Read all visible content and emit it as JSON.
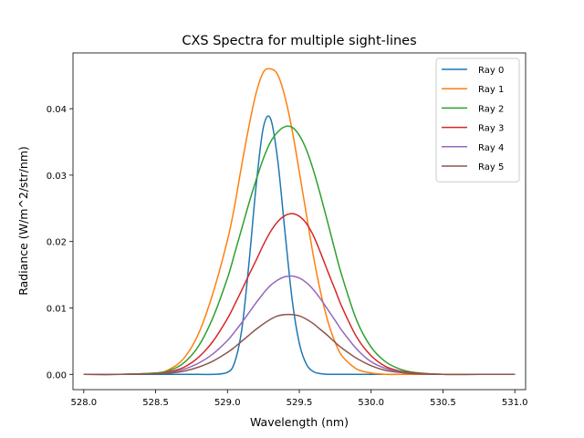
{
  "chart_data": {
    "type": "line",
    "title": "CXS Spectra for multiple sight-lines",
    "xlabel": "Wavelength (nm)",
    "ylabel": "Radiance (W/m^2/str/nm)",
    "xlim": [
      527.925,
      531.075
    ],
    "ylim": [
      -0.0023,
      0.0484
    ],
    "xticks": [
      528.0,
      528.5,
      529.0,
      529.5,
      530.0,
      530.5,
      531.0
    ],
    "xtick_labels": [
      "528.0",
      "528.5",
      "529.0",
      "529.5",
      "530.0",
      "530.5",
      "531.0"
    ],
    "yticks": [
      0.0,
      0.01,
      0.02,
      0.03,
      0.04
    ],
    "ytick_labels": [
      "0.00",
      "0.01",
      "0.02",
      "0.03",
      "0.04"
    ],
    "grid": false,
    "legend_position": "top-right",
    "x": [
      528.0,
      528.25,
      528.5,
      528.6,
      528.7,
      528.8,
      528.9,
      529.0,
      529.05,
      529.1,
      529.15,
      529.2,
      529.25,
      529.3,
      529.35,
      529.4,
      529.45,
      529.5,
      529.55,
      529.6,
      529.65,
      529.7,
      529.75,
      529.8,
      529.9,
      530.0,
      530.1,
      530.2,
      530.3,
      530.5,
      530.75,
      531.0
    ],
    "series": [
      {
        "name": "Ray 0",
        "color": "#1f77b4",
        "values": [
          0,
          0,
          0,
          0,
          0,
          0,
          0,
          0.0003,
          0.0018,
          0.0068,
          0.0168,
          0.0285,
          0.0372,
          0.0385,
          0.0322,
          0.0215,
          0.0113,
          0.0047,
          0.0015,
          0.0004,
          0.0001,
          0,
          0,
          0,
          0,
          0,
          0,
          0,
          0,
          0,
          0,
          0
        ]
      },
      {
        "name": "Ray 1",
        "color": "#ff7f0e",
        "values": [
          0,
          0,
          0.0002,
          0.0008,
          0.0025,
          0.0062,
          0.0123,
          0.0202,
          0.0254,
          0.0316,
          0.0374,
          0.0424,
          0.0455,
          0.046,
          0.0451,
          0.0418,
          0.0368,
          0.0305,
          0.024,
          0.0176,
          0.0122,
          0.0079,
          0.0048,
          0.0027,
          0.0008,
          0.0002,
          0,
          0,
          0,
          0,
          0,
          0
        ]
      },
      {
        "name": "Ray 2",
        "color": "#2ca02c",
        "values": [
          0,
          0,
          0.0002,
          0.0006,
          0.0018,
          0.0043,
          0.0086,
          0.0145,
          0.0182,
          0.022,
          0.0258,
          0.0293,
          0.0325,
          0.035,
          0.0365,
          0.0373,
          0.0372,
          0.036,
          0.0338,
          0.0306,
          0.0268,
          0.0227,
          0.0185,
          0.0146,
          0.0081,
          0.0041,
          0.0019,
          0.0008,
          0.0003,
          0,
          0,
          0
        ]
      },
      {
        "name": "Ray 3",
        "color": "#d62728",
        "values": [
          0,
          0,
          0.0001,
          0.0004,
          0.0011,
          0.0026,
          0.005,
          0.0084,
          0.0105,
          0.0127,
          0.015,
          0.0172,
          0.0195,
          0.0215,
          0.023,
          0.0239,
          0.0242,
          0.0238,
          0.0227,
          0.0208,
          0.0182,
          0.0154,
          0.0127,
          0.01,
          0.0056,
          0.0028,
          0.0012,
          0.0005,
          0.0002,
          0,
          0,
          0
        ]
      },
      {
        "name": "Ray 4",
        "color": "#9467bd",
        "values": [
          0,
          0,
          0.0001,
          0.0003,
          0.0008,
          0.0017,
          0.0031,
          0.0051,
          0.0064,
          0.0078,
          0.0093,
          0.0108,
          0.0122,
          0.0134,
          0.0142,
          0.0147,
          0.0148,
          0.0145,
          0.0138,
          0.0127,
          0.0113,
          0.0097,
          0.0081,
          0.0065,
          0.0038,
          0.0019,
          0.0009,
          0.0004,
          0.0001,
          0,
          0,
          0
        ]
      },
      {
        "name": "Ray 5",
        "color": "#8c564b",
        "values": [
          0,
          0,
          0.0001,
          0.0002,
          0.0005,
          0.0011,
          0.002,
          0.0033,
          0.0041,
          0.005,
          0.0059,
          0.0068,
          0.0076,
          0.0083,
          0.0088,
          0.009,
          0.009,
          0.0088,
          0.0083,
          0.0076,
          0.0067,
          0.0058,
          0.0048,
          0.0039,
          0.0024,
          0.0013,
          0.0006,
          0.0003,
          0.0001,
          0,
          0,
          0
        ]
      }
    ]
  }
}
